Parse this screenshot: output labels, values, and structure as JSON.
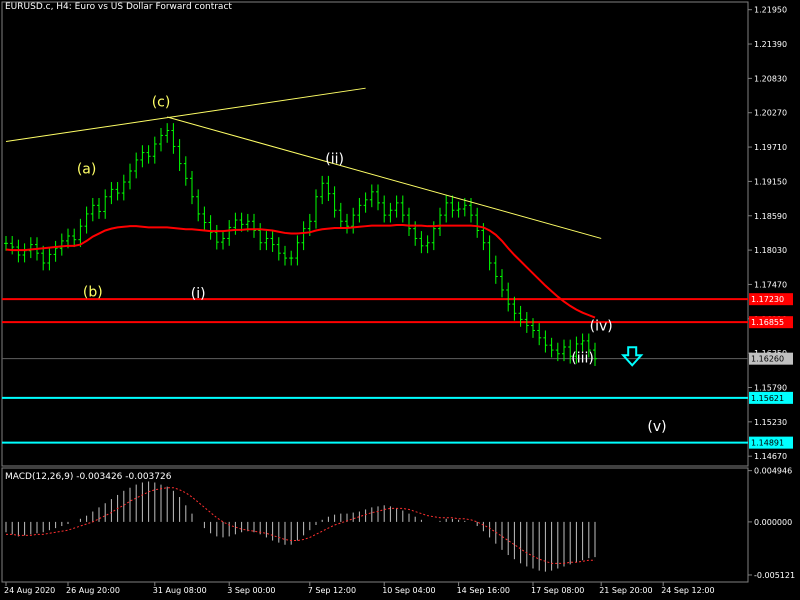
{
  "header": {
    "title": "EURUSD.c, H4:  Euro vs US Dollar Forward contract"
  },
  "indicator": {
    "title": "MACD(12,26,9) -0.003426 -0.003726"
  },
  "colors": {
    "background": "#000000",
    "candle": "#00ff00",
    "ma": "#ff0000",
    "trendline": "#ffff66",
    "level_red": "#ff0000",
    "level_cyan": "#00ffff",
    "macd_hist": "#c0c0c0",
    "macd_signal": "#ff3030",
    "wave_yellow": "#ffff66",
    "wave_white": "#ffffff",
    "arrow": "#00ffff"
  },
  "chart_data": {
    "type": "line",
    "symbol": "EURUSD.c",
    "timeframe": "H4",
    "y_ticks": [
      "1.21950",
      "1.21390",
      "1.20830",
      "1.20270",
      "1.19710",
      "1.19150",
      "1.18590",
      "1.18030",
      "1.17470",
      "1.16910",
      "1.16350",
      "1.15790",
      "1.15230",
      "1.14670"
    ],
    "ylim": [
      1.1451,
      1.2201
    ],
    "x_ticks": [
      "24 Aug 2020",
      "26 Aug 20:00",
      "31 Aug 08:00",
      "3 Sep 00:00",
      "7 Sep 12:00",
      "10 Sep 04:00",
      "14 Sep 16:00",
      "17 Sep 08:00",
      "21 Sep 20:00",
      "24 Sep 12:00"
    ],
    "price_series": [
      1.1814,
      1.1808,
      1.1795,
      1.1802,
      1.1812,
      1.1798,
      1.1782,
      1.1796,
      1.1806,
      1.1818,
      1.1826,
      1.182,
      1.1842,
      1.1862,
      1.1876,
      1.1866,
      1.189,
      1.1902,
      1.1896,
      1.1914,
      1.1932,
      1.195,
      1.1962,
      1.1956,
      1.1976,
      1.199,
      1.1998,
      1.1972,
      1.1944,
      1.192,
      1.189,
      1.1862,
      1.1848,
      1.1832,
      1.1816,
      1.1822,
      1.184,
      1.1852,
      1.1845,
      1.185,
      1.1835,
      1.1815,
      1.1822,
      1.1812,
      1.1798,
      1.179,
      1.179,
      1.1815,
      1.1838,
      1.185,
      1.189,
      1.1912,
      1.1895,
      1.1868,
      1.185,
      1.1842,
      1.186,
      1.1876,
      1.1885,
      1.1898,
      1.188,
      1.186,
      1.1868,
      1.188,
      1.186,
      1.1838,
      1.1822,
      1.181,
      1.1815,
      1.1838,
      1.186,
      1.188,
      1.1868,
      1.187,
      1.1876,
      1.186,
      1.1835,
      1.1815,
      1.1782,
      1.176,
      1.1738,
      1.1715,
      1.17,
      1.169,
      1.168,
      1.1672,
      1.166,
      1.1648,
      1.164,
      1.1634,
      1.1645,
      1.163,
      1.165,
      1.1655,
      1.164,
      1.1626
    ],
    "ma_series": [
      1.1804,
      1.1803,
      1.1803,
      1.1803,
      1.1804,
      1.1805,
      1.1806,
      1.1807,
      1.1808,
      1.1809,
      1.181,
      1.181,
      1.1812,
      1.1818,
      1.1825,
      1.183,
      1.1835,
      1.1838,
      1.184,
      1.1841,
      1.1842,
      1.1842,
      1.1841,
      1.184,
      1.184,
      1.184,
      1.184,
      1.1839,
      1.1838,
      1.1837,
      1.1837,
      1.1836,
      1.1835,
      1.1834,
      1.1834,
      1.1834,
      1.1835,
      1.1836,
      1.1836,
      1.1837,
      1.1837,
      1.1837,
      1.1836,
      1.1835,
      1.1833,
      1.1831,
      1.183,
      1.183,
      1.1831,
      1.1832,
      1.1835,
      1.1837,
      1.1838,
      1.1839,
      1.1839,
      1.1839,
      1.184,
      1.1841,
      1.1842,
      1.1843,
      1.1843,
      1.1843,
      1.1843,
      1.1844,
      1.1844,
      1.1843,
      1.1843,
      1.1843,
      1.1842,
      1.1842,
      1.1843,
      1.1843,
      1.1843,
      1.1843,
      1.1843,
      1.1843,
      1.1842,
      1.184,
      1.1835,
      1.1828,
      1.1818,
      1.1806,
      1.1795,
      1.1785,
      1.1775,
      1.1765,
      1.1755,
      1.1745,
      1.1736,
      1.1727,
      1.1719,
      1.1712,
      1.1706,
      1.1701,
      1.1697,
      1.1693
    ],
    "levels": [
      {
        "price": 1.1723,
        "label": "1.17230",
        "color": "red"
      },
      {
        "price": 1.16855,
        "label": "1.16855",
        "color": "red"
      },
      {
        "price": 1.1626,
        "label": "1.16260",
        "color": "gray"
      },
      {
        "price": 1.15621,
        "label": "1.15621",
        "color": "cyan"
      },
      {
        "price": 1.14891,
        "label": "1.14891",
        "color": "cyan"
      }
    ],
    "trendlines": [
      {
        "from": {
          "bar": 0,
          "price": 1.198
        },
        "to": {
          "bar": 58,
          "price": 1.2067
        }
      },
      {
        "from": {
          "bar": 26,
          "price": 1.202
        },
        "to": {
          "bar": 96,
          "price": 1.1822
        }
      }
    ],
    "wave_labels": [
      {
        "text": "(c)",
        "bar": 25,
        "price": 1.2037,
        "color": "yellow"
      },
      {
        "text": "(a)",
        "bar": 13,
        "price": 1.1928,
        "color": "yellow"
      },
      {
        "text": "(b)",
        "bar": 14,
        "price": 1.1727,
        "color": "yellow"
      },
      {
        "text": "(i)",
        "bar": 31,
        "price": 1.1725,
        "color": "white"
      },
      {
        "text": "(ii)",
        "bar": 53,
        "price": 1.1944,
        "color": "white"
      },
      {
        "text": "(iv)",
        "bar": 96,
        "price": 1.1672,
        "color": "white"
      },
      {
        "text": "(iii)",
        "bar": 93,
        "price": 1.162,
        "color": "white"
      },
      {
        "text": "(v)",
        "bar": 105,
        "price": 1.1508,
        "color": "white"
      }
    ],
    "arrow": {
      "bar": 101,
      "price": 1.1625,
      "direction": "down"
    },
    "macd": {
      "ylim": [
        -0.0058,
        0.0052
      ],
      "y_ticks": [
        "0.004946",
        "0.000000",
        "-0.005121"
      ],
      "histogram": [
        -0.001,
        -0.0012,
        -0.0014,
        -0.0013,
        -0.0012,
        -0.0011,
        -0.001,
        -0.0008,
        -0.0006,
        -0.0004,
        -0.0002,
        0.0,
        0.0003,
        0.0006,
        0.001,
        0.0014,
        0.0018,
        0.0022,
        0.0026,
        0.003,
        0.0033,
        0.0036,
        0.0038,
        0.0039,
        0.0038,
        0.0036,
        0.0034,
        0.003,
        0.0024,
        0.0016,
        0.0008,
        0.0,
        -0.0006,
        -0.0011,
        -0.0014,
        -0.0015,
        -0.0014,
        -0.0012,
        -0.001,
        -0.0009,
        -0.001,
        -0.0012,
        -0.0015,
        -0.0018,
        -0.002,
        -0.0022,
        -0.0022,
        -0.0018,
        -0.0013,
        -0.0008,
        -0.0003,
        0.0002,
        0.0005,
        0.0007,
        0.0008,
        0.0008,
        0.0009,
        0.001,
        0.0012,
        0.0014,
        0.0015,
        0.0016,
        0.0015,
        0.0013,
        0.0011,
        0.0008,
        0.0005,
        0.0002,
        0.0,
        0.0,
        0.0001,
        0.0003,
        0.0003,
        0.0002,
        0.0001,
        0.0,
        -0.0004,
        -0.0009,
        -0.0015,
        -0.0021,
        -0.0027,
        -0.0032,
        -0.0036,
        -0.004,
        -0.0043,
        -0.0045,
        -0.0047,
        -0.0048,
        -0.0047,
        -0.0045,
        -0.0043,
        -0.0041,
        -0.0039,
        -0.0037,
        -0.0035,
        -0.0034
      ],
      "signal": [
        -0.0012,
        -0.0012,
        -0.0013,
        -0.0013,
        -0.0013,
        -0.0012,
        -0.0012,
        -0.0011,
        -0.001,
        -0.0009,
        -0.0008,
        -0.0006,
        -0.0004,
        -0.0002,
        0.0,
        0.0003,
        0.0006,
        0.0009,
        0.0013,
        0.0016,
        0.002,
        0.0023,
        0.0026,
        0.0029,
        0.0031,
        0.0032,
        0.0033,
        0.0033,
        0.0031,
        0.0028,
        0.0024,
        0.0019,
        0.0014,
        0.0009,
        0.0004,
        0.0,
        -0.0003,
        -0.0005,
        -0.0007,
        -0.0008,
        -0.0009,
        -0.001,
        -0.0011,
        -0.0013,
        -0.0015,
        -0.0017,
        -0.0018,
        -0.0018,
        -0.0017,
        -0.0015,
        -0.0012,
        -0.0009,
        -0.0006,
        -0.0003,
        -0.0001,
        0.0001,
        0.0003,
        0.0005,
        0.0007,
        0.0009,
        0.001,
        0.0012,
        0.0013,
        0.0013,
        0.0013,
        0.0012,
        0.001,
        0.0008,
        0.0006,
        0.0005,
        0.0004,
        0.0004,
        0.0004,
        0.0003,
        0.0003,
        0.0002,
        0.0,
        -0.0003,
        -0.0006,
        -0.001,
        -0.0014,
        -0.0018,
        -0.0022,
        -0.0026,
        -0.003,
        -0.0033,
        -0.0036,
        -0.0038,
        -0.004,
        -0.004,
        -0.004,
        -0.0039,
        -0.0039,
        -0.0038,
        -0.0037,
        -0.0037
      ]
    }
  }
}
